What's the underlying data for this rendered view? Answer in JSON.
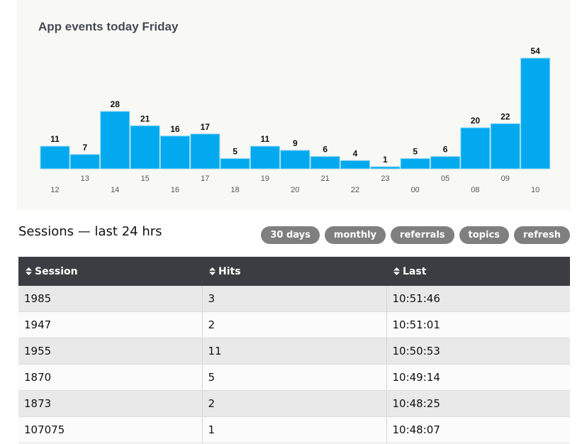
{
  "chart_section": {
    "title": "App events today Friday"
  },
  "chart_data": {
    "type": "bar",
    "title": "App events today Friday",
    "categories": [
      "12",
      "13",
      "14",
      "15",
      "16",
      "17",
      "18",
      "19",
      "20",
      "21",
      "22",
      "23",
      "00",
      "05",
      "08",
      "09",
      "10"
    ],
    "values": [
      11,
      7,
      28,
      21,
      16,
      17,
      5,
      11,
      9,
      6,
      4,
      1,
      5,
      6,
      20,
      22,
      54
    ],
    "xlabel": "",
    "ylabel": "",
    "ylim": [
      0,
      54
    ],
    "grid": false,
    "bar_color": "#03a9ee",
    "bar_edge_color": "#86d3f5"
  },
  "sessions_section": {
    "title": "Sessions — last 24 hrs",
    "buttons": [
      "30 days",
      "monthly",
      "referrals",
      "topics",
      "refresh"
    ]
  },
  "table": {
    "columns": [
      "Session",
      "Hits",
      "Last"
    ],
    "rows": [
      [
        "1985",
        "3",
        "10:51:46"
      ],
      [
        "1947",
        "2",
        "10:51:01"
      ],
      [
        "1955",
        "11",
        "10:50:53"
      ],
      [
        "1870",
        "5",
        "10:49:14"
      ],
      [
        "1873",
        "2",
        "10:48:25"
      ],
      [
        "107075",
        "1",
        "10:48:07"
      ]
    ]
  },
  "icons": {
    "sort": "sort-icon"
  }
}
